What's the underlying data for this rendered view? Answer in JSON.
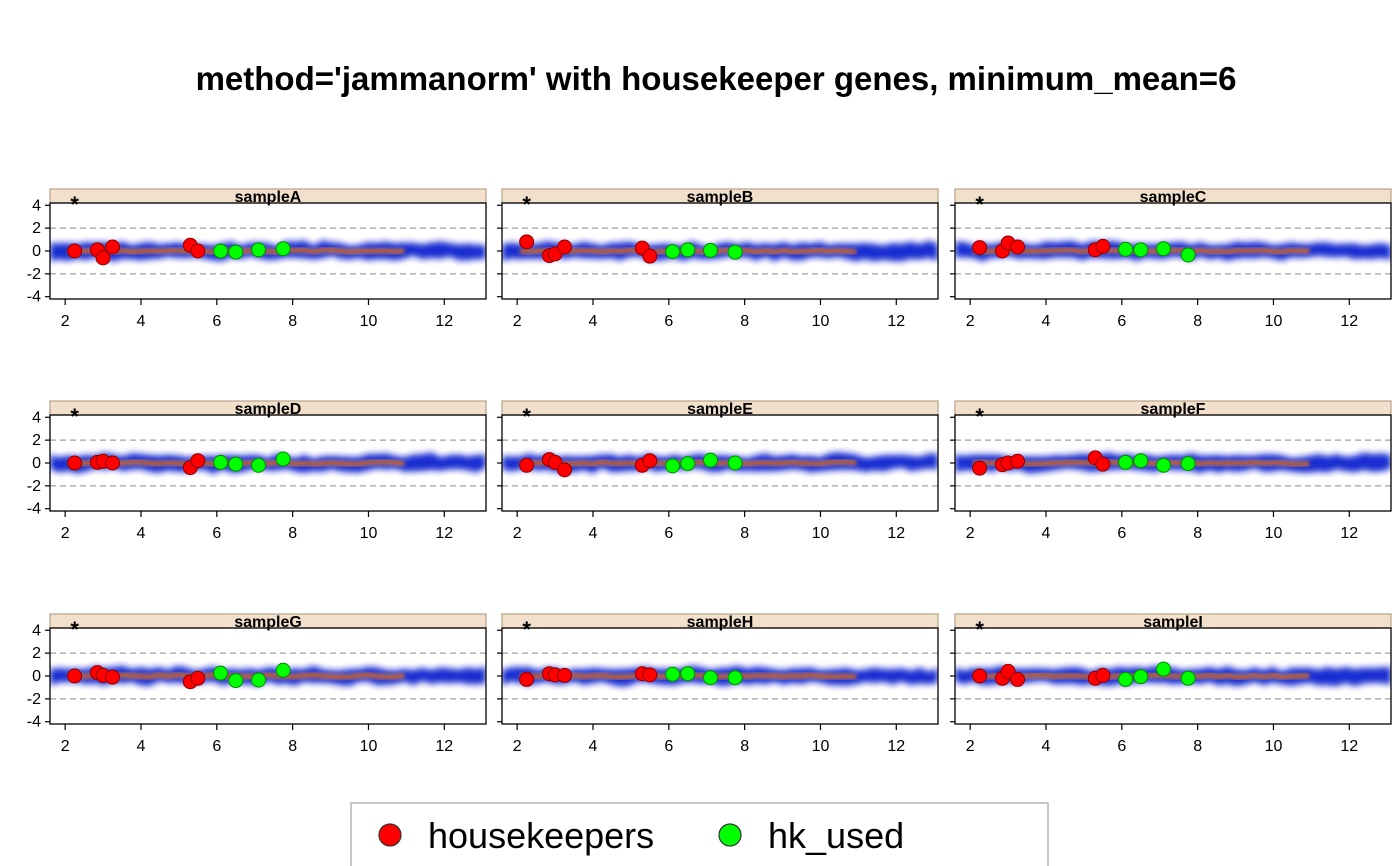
{
  "chart_data": {
    "type": "scatter",
    "title": "method='jammanorm' with housekeeper genes, minimum_mean=6",
    "layout": {
      "rows": 3,
      "cols": 3
    },
    "xlim": [
      1.6,
      13.1
    ],
    "ylim": [
      -4.2,
      4.2
    ],
    "x_ticks": [
      2,
      4,
      6,
      8,
      10,
      12
    ],
    "y_ticks": [
      4,
      2,
      0,
      -2,
      -4
    ],
    "reference_lines": [
      2,
      -2
    ],
    "grid": false,
    "marker_label": "*",
    "colors": {
      "strip": "#f2e0cc",
      "strip_border": "#b8a08a",
      "density_low": "#0015cc",
      "density_high": "#ff8c1a",
      "housekeepers": "#ff0000",
      "hk_used": "#00ff00",
      "refline": "#a0a0a0"
    },
    "legend": {
      "placement": "bottom",
      "entries": [
        {
          "label": "housekeepers",
          "color": "#ff0000"
        },
        {
          "label": "hk_used",
          "color": "#00ff00"
        }
      ]
    },
    "housekeepers_x": [
      2.25,
      2.85,
      3.0,
      3.25,
      5.3,
      5.5
    ],
    "hk_used_x": [
      6.1,
      6.5,
      7.1,
      7.75
    ],
    "panels": [
      {
        "name": "sampleA",
        "housekeepers": [
          0.0,
          0.1,
          -0.6,
          0.35,
          0.5,
          0.0
        ],
        "hk_used": [
          0.0,
          -0.1,
          0.1,
          0.2
        ]
      },
      {
        "name": "sampleB",
        "housekeepers": [
          0.8,
          -0.4,
          -0.25,
          0.35,
          0.25,
          -0.45
        ],
        "hk_used": [
          -0.05,
          0.1,
          0.05,
          -0.1
        ]
      },
      {
        "name": "sampleC",
        "housekeepers": [
          0.3,
          0.0,
          0.7,
          0.35,
          0.1,
          0.4
        ],
        "hk_used": [
          0.15,
          0.1,
          0.2,
          -0.35
        ]
      },
      {
        "name": "sampleD",
        "housekeepers": [
          0.0,
          0.05,
          0.15,
          0.0,
          -0.4,
          0.2
        ],
        "hk_used": [
          0.05,
          -0.1,
          -0.2,
          0.35
        ]
      },
      {
        "name": "sampleE",
        "housekeepers": [
          -0.2,
          0.3,
          0.05,
          -0.6,
          -0.2,
          0.2
        ],
        "hk_used": [
          -0.25,
          -0.05,
          0.25,
          0.0
        ]
      },
      {
        "name": "sampleF",
        "housekeepers": [
          -0.45,
          -0.15,
          0.0,
          0.15,
          0.45,
          -0.1
        ],
        "hk_used": [
          0.05,
          0.2,
          -0.2,
          -0.05
        ]
      },
      {
        "name": "sampleG",
        "housekeepers": [
          0.0,
          0.3,
          0.05,
          -0.1,
          -0.5,
          -0.2
        ],
        "hk_used": [
          0.25,
          -0.4,
          -0.35,
          0.5
        ]
      },
      {
        "name": "sampleH",
        "housekeepers": [
          -0.3,
          0.2,
          0.1,
          0.05,
          0.2,
          0.1
        ],
        "hk_used": [
          0.15,
          0.2,
          -0.15,
          -0.15
        ]
      },
      {
        "name": "sampleI",
        "housekeepers": [
          0.0,
          -0.2,
          0.4,
          -0.3,
          -0.2,
          0.05
        ],
        "hk_used": [
          -0.3,
          -0.05,
          0.6,
          -0.2
        ]
      }
    ]
  }
}
